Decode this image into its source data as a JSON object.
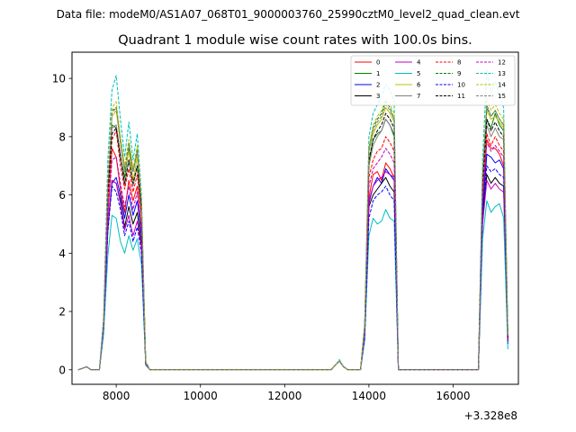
{
  "figure": {
    "suptitle": "Data file: modeM0/AS1A07_068T01_9000003760_25990cztM0_level2_quad_clean.evt"
  },
  "chart_data": {
    "type": "line",
    "title": "Quadrant 1 module wise count rates with 100.0s bins.",
    "xlabel": "",
    "ylabel": "",
    "x_offset_label": "+3.328e8",
    "xlim": [
      6950,
      17550
    ],
    "ylim": [
      -0.5,
      10.9
    ],
    "xticks": [
      8000,
      10000,
      12000,
      14000,
      16000
    ],
    "xtick_labels": [
      "8000",
      "10000",
      "12000",
      "14000",
      "16000"
    ],
    "yticks": [
      0,
      2,
      4,
      6,
      8,
      10
    ],
    "ytick_labels": [
      "0",
      "2",
      "4",
      "6",
      "8",
      "10"
    ],
    "grid": false,
    "legend": {
      "location": "upper right",
      "columns": 4
    },
    "x": [
      7100,
      7200,
      7300,
      7400,
      7500,
      7600,
      7700,
      7800,
      7900,
      8000,
      8100,
      8200,
      8300,
      8400,
      8500,
      8600,
      8700,
      8800,
      8900,
      9000,
      10000,
      11000,
      12000,
      13000,
      13100,
      13200,
      13300,
      13400,
      13500,
      13600,
      13700,
      13800,
      13900,
      14000,
      14100,
      14200,
      14300,
      14400,
      14500,
      14600,
      14700,
      14800,
      15000,
      16000,
      16500,
      16600,
      16700,
      16800,
      16900,
      17000,
      17100,
      17200,
      17300
    ],
    "series": [
      {
        "name": "0",
        "color": "#ff0000",
        "dash": "solid",
        "values": [
          0.0,
          0.05,
          0.1,
          0.0,
          0.0,
          0.0,
          1.5,
          5.3,
          7.6,
          7.3,
          6.2,
          5.4,
          6.5,
          5.8,
          6.3,
          4.8,
          0.2,
          0.0,
          0.0,
          0.0,
          0.0,
          0.0,
          0.0,
          0.0,
          0.0,
          0.15,
          0.3,
          0.1,
          0.0,
          0.0,
          0.0,
          0.0,
          1.2,
          5.9,
          6.7,
          6.8,
          6.5,
          7.1,
          6.9,
          6.6,
          0.0,
          0.0,
          0.0,
          0.0,
          0.0,
          0.0,
          5.5,
          7.9,
          7.6,
          7.6,
          7.4,
          7.0,
          1.0
        ]
      },
      {
        "name": "1",
        "color": "#008000",
        "dash": "solid",
        "values": [
          0.0,
          0.05,
          0.1,
          0.0,
          0.0,
          0.0,
          1.6,
          6.2,
          8.4,
          8.3,
          7.3,
          6.6,
          7.6,
          6.8,
          7.5,
          5.6,
          0.25,
          0.0,
          0.0,
          0.0,
          0.0,
          0.0,
          0.0,
          0.0,
          0.0,
          0.15,
          0.3,
          0.1,
          0.0,
          0.0,
          0.0,
          0.0,
          1.4,
          7.1,
          7.9,
          8.1,
          8.2,
          8.6,
          8.4,
          8.0,
          0.0,
          0.0,
          0.0,
          0.0,
          0.0,
          0.0,
          6.3,
          8.6,
          8.3,
          8.8,
          8.4,
          8.2,
          1.1
        ]
      },
      {
        "name": "2",
        "color": "#0000ff",
        "dash": "solid",
        "values": [
          0.0,
          0.05,
          0.1,
          0.0,
          0.0,
          0.0,
          1.4,
          4.9,
          6.4,
          6.6,
          6.0,
          5.2,
          6.0,
          5.3,
          5.8,
          4.6,
          0.2,
          0.0,
          0.0,
          0.0,
          0.0,
          0.0,
          0.0,
          0.0,
          0.0,
          0.15,
          0.3,
          0.1,
          0.0,
          0.0,
          0.0,
          0.0,
          1.2,
          5.7,
          6.3,
          6.6,
          6.4,
          6.9,
          6.7,
          6.5,
          0.0,
          0.0,
          0.0,
          0.0,
          0.0,
          0.0,
          5.4,
          7.4,
          7.3,
          7.1,
          7.2,
          6.9,
          1.0
        ]
      },
      {
        "name": "3",
        "color": "#000000",
        "dash": "solid",
        "values": [
          0.0,
          0.05,
          0.1,
          0.0,
          0.0,
          0.0,
          1.4,
          4.8,
          6.5,
          6.4,
          5.8,
          4.9,
          5.6,
          5.0,
          5.4,
          4.3,
          0.2,
          0.0,
          0.0,
          0.0,
          0.0,
          0.0,
          0.0,
          0.0,
          0.0,
          0.15,
          0.3,
          0.1,
          0.0,
          0.0,
          0.0,
          0.0,
          1.2,
          5.6,
          6.0,
          6.2,
          6.4,
          6.6,
          6.3,
          6.1,
          0.0,
          0.0,
          0.0,
          0.0,
          0.0,
          0.0,
          5.2,
          6.7,
          6.4,
          6.6,
          6.4,
          6.3,
          0.9
        ]
      },
      {
        "name": "4",
        "color": "#c000c0",
        "dash": "solid",
        "values": [
          0.0,
          0.05,
          0.1,
          0.0,
          0.0,
          0.0,
          1.4,
          4.9,
          6.5,
          6.4,
          5.7,
          4.8,
          5.3,
          4.6,
          5.1,
          4.2,
          0.2,
          0.0,
          0.0,
          0.0,
          0.0,
          0.0,
          0.0,
          0.0,
          0.0,
          0.15,
          0.3,
          0.1,
          0.0,
          0.0,
          0.0,
          0.0,
          1.2,
          5.8,
          6.3,
          6.5,
          6.6,
          6.8,
          6.7,
          6.6,
          0.0,
          0.0,
          0.0,
          0.0,
          0.0,
          0.0,
          5.0,
          6.5,
          6.2,
          6.4,
          6.2,
          6.1,
          0.9
        ]
      },
      {
        "name": "5",
        "color": "#00bfbf",
        "dash": "solid",
        "values": [
          0.0,
          0.05,
          0.1,
          0.0,
          0.0,
          0.0,
          1.2,
          3.9,
          5.3,
          5.2,
          4.4,
          4.0,
          4.6,
          4.1,
          4.5,
          3.6,
          0.15,
          0.0,
          0.0,
          0.0,
          0.0,
          0.0,
          0.0,
          0.0,
          0.0,
          0.15,
          0.3,
          0.1,
          0.0,
          0.0,
          0.0,
          0.0,
          1.0,
          4.6,
          5.2,
          5.0,
          5.1,
          5.5,
          5.2,
          5.1,
          0.0,
          0.0,
          0.0,
          0.0,
          0.0,
          0.0,
          4.5,
          5.8,
          5.4,
          5.6,
          5.7,
          5.2,
          0.7
        ]
      },
      {
        "name": "6",
        "color": "#bfbf00",
        "dash": "solid",
        "values": [
          0.0,
          0.05,
          0.1,
          0.0,
          0.0,
          0.0,
          1.6,
          6.2,
          8.7,
          8.9,
          7.8,
          6.8,
          7.5,
          6.5,
          7.3,
          5.6,
          0.25,
          0.0,
          0.0,
          0.0,
          0.0,
          0.0,
          0.0,
          0.0,
          0.0,
          0.15,
          0.3,
          0.1,
          0.0,
          0.0,
          0.0,
          0.0,
          1.5,
          7.5,
          8.1,
          8.4,
          8.6,
          9.0,
          8.8,
          8.5,
          0.0,
          0.0,
          0.0,
          0.0,
          0.0,
          0.0,
          6.6,
          8.9,
          8.6,
          8.7,
          8.5,
          8.3,
          1.1
        ]
      },
      {
        "name": "7",
        "color": "#808080",
        "dash": "solid",
        "values": [
          0.0,
          0.05,
          0.1,
          0.0,
          0.0,
          0.0,
          1.6,
          6.0,
          8.3,
          8.4,
          7.4,
          6.3,
          7.2,
          6.3,
          7.0,
          5.4,
          0.25,
          0.0,
          0.0,
          0.0,
          0.0,
          0.0,
          0.0,
          0.0,
          0.0,
          0.15,
          0.3,
          0.1,
          0.0,
          0.0,
          0.0,
          0.0,
          1.4,
          7.0,
          7.7,
          8.0,
          8.2,
          8.6,
          8.4,
          8.1,
          0.0,
          0.0,
          0.0,
          0.0,
          0.0,
          0.0,
          6.2,
          8.4,
          8.0,
          8.3,
          8.0,
          7.9,
          1.1
        ]
      },
      {
        "name": "8",
        "color": "#ff0000",
        "dash": "dashed",
        "values": [
          0.0,
          0.05,
          0.1,
          0.0,
          0.0,
          0.0,
          1.6,
          5.8,
          7.9,
          8.2,
          7.0,
          6.2,
          6.9,
          6.1,
          6.7,
          5.3,
          0.2,
          0.0,
          0.0,
          0.0,
          0.0,
          0.0,
          0.0,
          0.0,
          0.0,
          0.15,
          0.3,
          0.1,
          0.0,
          0.0,
          0.0,
          0.0,
          1.3,
          6.6,
          7.2,
          7.5,
          7.6,
          8.0,
          7.8,
          7.5,
          0.0,
          0.0,
          0.0,
          0.0,
          0.0,
          0.0,
          6.0,
          8.1,
          7.7,
          8.0,
          7.7,
          7.5,
          1.0
        ]
      },
      {
        "name": "9",
        "color": "#008000",
        "dash": "dashed",
        "values": [
          0.0,
          0.05,
          0.1,
          0.0,
          0.0,
          0.0,
          1.7,
          6.4,
          8.9,
          9.0,
          7.9,
          6.9,
          7.8,
          6.8,
          7.6,
          5.7,
          0.25,
          0.0,
          0.0,
          0.0,
          0.0,
          0.0,
          0.0,
          0.0,
          0.0,
          0.15,
          0.3,
          0.1,
          0.0,
          0.0,
          0.0,
          0.0,
          1.5,
          7.6,
          8.3,
          8.6,
          8.8,
          9.2,
          9.0,
          8.6,
          0.0,
          0.0,
          0.0,
          0.0,
          0.0,
          0.0,
          6.7,
          9.0,
          8.7,
          8.9,
          8.6,
          8.4,
          1.2
        ]
      },
      {
        "name": "10",
        "color": "#0000ff",
        "dash": "dashed",
        "values": [
          0.0,
          0.05,
          0.1,
          0.0,
          0.0,
          0.0,
          1.4,
          4.7,
          6.3,
          6.1,
          5.5,
          4.6,
          5.1,
          4.4,
          4.9,
          4.0,
          0.2,
          0.0,
          0.0,
          0.0,
          0.0,
          0.0,
          0.0,
          0.0,
          0.0,
          0.15,
          0.3,
          0.1,
          0.0,
          0.0,
          0.0,
          0.0,
          1.1,
          5.2,
          5.8,
          6.0,
          6.1,
          6.3,
          6.0,
          5.8,
          0.0,
          0.0,
          0.0,
          0.0,
          0.0,
          0.0,
          5.4,
          7.0,
          6.8,
          6.9,
          6.7,
          6.6,
          0.9
        ]
      },
      {
        "name": "11",
        "color": "#000000",
        "dash": "dashed",
        "values": [
          0.0,
          0.05,
          0.1,
          0.0,
          0.0,
          0.0,
          1.6,
          6.0,
          8.1,
          8.3,
          7.3,
          6.4,
          7.2,
          6.4,
          7.0,
          5.4,
          0.25,
          0.0,
          0.0,
          0.0,
          0.0,
          0.0,
          0.0,
          0.0,
          0.0,
          0.15,
          0.3,
          0.1,
          0.0,
          0.0,
          0.0,
          0.0,
          1.4,
          7.2,
          7.9,
          8.2,
          8.4,
          8.8,
          8.6,
          8.3,
          0.0,
          0.0,
          0.0,
          0.0,
          0.0,
          0.0,
          6.4,
          8.6,
          8.2,
          8.5,
          8.2,
          8.0,
          1.1
        ]
      },
      {
        "name": "12",
        "color": "#c000c0",
        "dash": "dashed",
        "values": [
          0.0,
          0.05,
          0.1,
          0.0,
          0.0,
          0.0,
          1.5,
          5.3,
          7.2,
          7.3,
          6.4,
          5.6,
          6.3,
          5.5,
          6.1,
          4.8,
          0.2,
          0.0,
          0.0,
          0.0,
          0.0,
          0.0,
          0.0,
          0.0,
          0.0,
          0.15,
          0.3,
          0.1,
          0.0,
          0.0,
          0.0,
          0.0,
          1.3,
          6.3,
          6.9,
          7.1,
          7.3,
          7.6,
          7.4,
          7.1,
          0.0,
          0.0,
          0.0,
          0.0,
          0.0,
          0.0,
          5.9,
          7.8,
          7.5,
          7.7,
          7.5,
          7.3,
          1.0
        ]
      },
      {
        "name": "13",
        "color": "#00bfbf",
        "dash": "dashed",
        "values": [
          0.0,
          0.05,
          0.1,
          0.0,
          0.0,
          0.0,
          1.8,
          7.2,
          9.6,
          10.1,
          8.6,
          7.3,
          8.5,
          7.2,
          8.1,
          6.0,
          0.3,
          0.0,
          0.0,
          0.0,
          0.0,
          0.0,
          0.0,
          0.0,
          0.0,
          0.15,
          0.35,
          0.1,
          0.0,
          0.0,
          0.0,
          0.0,
          1.6,
          8.0,
          8.8,
          9.1,
          9.4,
          9.8,
          9.6,
          9.2,
          0.0,
          0.0,
          0.0,
          0.0,
          0.0,
          0.0,
          7.2,
          10.3,
          9.5,
          9.9,
          9.4,
          9.0,
          1.3
        ]
      },
      {
        "name": "14",
        "color": "#bfbf00",
        "dash": "dashed",
        "values": [
          0.0,
          0.05,
          0.1,
          0.0,
          0.0,
          0.0,
          1.7,
          6.6,
          9.0,
          9.2,
          8.0,
          7.0,
          7.9,
          6.9,
          7.7,
          5.8,
          0.25,
          0.0,
          0.0,
          0.0,
          0.0,
          0.0,
          0.0,
          0.0,
          0.0,
          0.15,
          0.3,
          0.1,
          0.0,
          0.0,
          0.0,
          0.0,
          1.5,
          7.6,
          8.4,
          8.7,
          8.9,
          9.3,
          9.1,
          8.8,
          0.0,
          0.0,
          0.0,
          0.0,
          0.0,
          0.0,
          6.8,
          9.3,
          8.9,
          9.1,
          8.8,
          8.6,
          1.2
        ]
      },
      {
        "name": "15",
        "color": "#808080",
        "dash": "dashed",
        "values": [
          0.0,
          0.05,
          0.1,
          0.0,
          0.0,
          0.0,
          1.7,
          6.4,
          8.8,
          9.0,
          7.8,
          6.8,
          7.7,
          6.8,
          7.5,
          5.7,
          0.25,
          0.0,
          0.0,
          0.0,
          0.0,
          0.0,
          0.0,
          0.0,
          0.0,
          0.15,
          0.3,
          0.1,
          0.0,
          0.0,
          0.0,
          0.0,
          1.5,
          7.5,
          8.2,
          8.5,
          8.7,
          9.1,
          8.9,
          8.6,
          0.0,
          0.0,
          0.0,
          0.0,
          0.0,
          0.0,
          6.6,
          9.1,
          8.7,
          8.9,
          8.6,
          8.4,
          1.2
        ]
      }
    ]
  }
}
